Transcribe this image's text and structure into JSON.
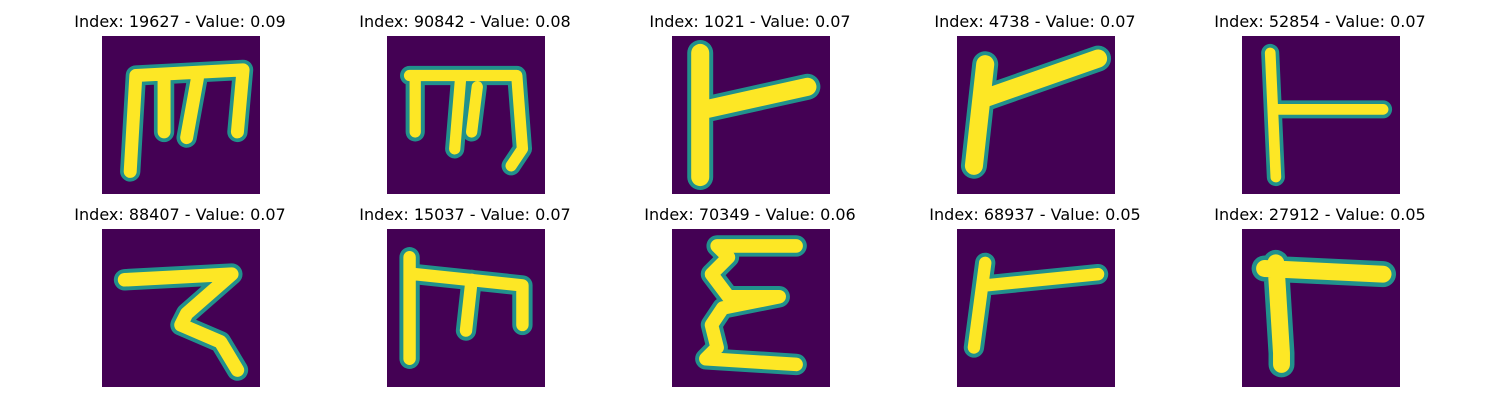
{
  "colors": {
    "background": "#440154",
    "mid_low": "#3b528b",
    "mid": "#21918c",
    "mid_high": "#5ec962",
    "foreground": "#fde725"
  },
  "panels": [
    {
      "title": "Index: 19627 - Value: 0.09",
      "glyph": "m-shape"
    },
    {
      "title": "Index: 90842 - Value: 0.08",
      "glyph": "m-shape"
    },
    {
      "title": "Index: 1021 - Value: 0.07",
      "glyph": "flag-shape"
    },
    {
      "title": "Index: 4738 - Value: 0.07",
      "glyph": "slanted-flag-shape"
    },
    {
      "title": "Index: 52854 - Value: 0.07",
      "glyph": "t-flag-shape"
    },
    {
      "title": "Index: 88407 - Value: 0.07",
      "glyph": "z-curve-shape"
    },
    {
      "title": "Index: 15037 - Value: 0.07",
      "glyph": "m-shape"
    },
    {
      "title": "Index: 70349 - Value: 0.06",
      "glyph": "epsilon-shape"
    },
    {
      "title": "Index: 68937 - Value: 0.05",
      "glyph": "flag-shape"
    },
    {
      "title": "Index: 27912 - Value: 0.05",
      "glyph": "gamma-shape"
    }
  ]
}
